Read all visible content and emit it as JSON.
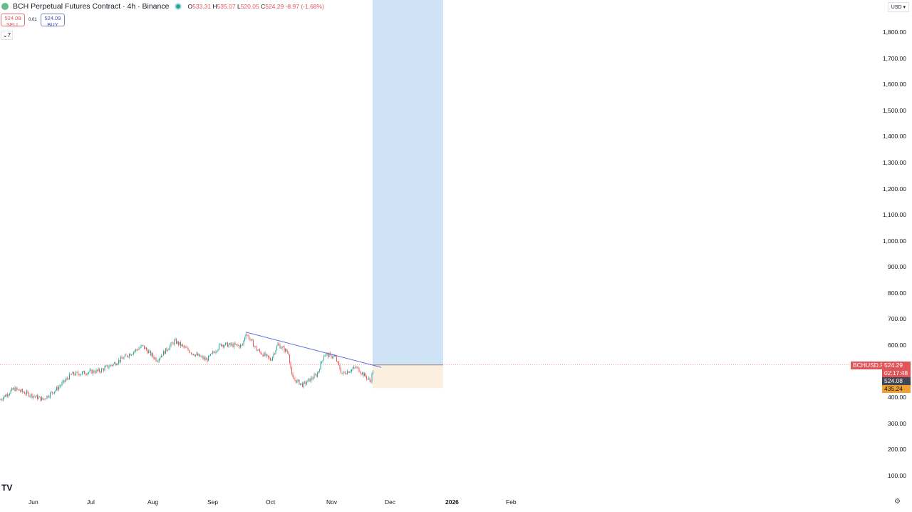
{
  "header": {
    "title": "BCH Perpetual Futures Contract · 4h · Binance",
    "open": "533.31",
    "high": "535.07",
    "low": "520.05",
    "close": "524.29",
    "change": "-8.97 (-1.68%)"
  },
  "trade": {
    "sell_price": "524.08",
    "sell_label": "SELL",
    "spread": "0.01",
    "buy_price": "524.09",
    "buy_label": "BUY"
  },
  "indicators_toggle": "7",
  "currency": "USD",
  "symbol_tag": "BCHUSD.P",
  "last_price": "524.29",
  "countdown": "02:17:48",
  "bid_price": "524.08",
  "stop_price": "435.24",
  "colors": {
    "up": "#26a69a",
    "down": "#ef5350",
    "target": "#cfe3f7",
    "stop": "#fbf0df",
    "trend": "#5b6ee1"
  },
  "chart_data": {
    "type": "candlestick",
    "title": "BCH Perpetual Futures Contract · 4h · Binance",
    "ylim": [
      100,
      1800
    ],
    "y_ticks": [
      "1,800.00",
      "1,700.00",
      "1,600.00",
      "1,500.00",
      "1,400.00",
      "1,300.00",
      "1,200.00",
      "1,100.00",
      "1,000.00",
      "900.00",
      "800.00",
      "700.00",
      "600.00",
      "400.00",
      "300.00",
      "200.00",
      "100.00"
    ],
    "x_ticks": [
      "Jun",
      "Jul",
      "Aug",
      "Sep",
      "Oct",
      "Nov",
      "Dec",
      "2026",
      "Feb"
    ],
    "price_path_waypoints": [
      [
        0,
        392
      ],
      [
        20,
        433
      ],
      [
        60,
        392
      ],
      [
        80,
        433
      ],
      [
        100,
        488
      ],
      [
        140,
        502
      ],
      [
        160,
        529
      ],
      [
        200,
        597
      ],
      [
        220,
        543
      ],
      [
        245,
        616
      ],
      [
        270,
        570
      ],
      [
        290,
        543
      ],
      [
        310,
        603
      ],
      [
        340,
        597
      ],
      [
        345,
        647
      ],
      [
        360,
        584
      ],
      [
        380,
        543
      ],
      [
        390,
        603
      ],
      [
        405,
        570
      ],
      [
        410,
        474
      ],
      [
        425,
        447
      ],
      [
        445,
        488
      ],
      [
        455,
        565
      ],
      [
        470,
        556
      ],
      [
        480,
        490
      ],
      [
        500,
        515
      ],
      [
        520,
        461
      ],
      [
        525,
        524
      ]
    ],
    "trendline": {
      "from_price": 650,
      "to_price": 515
    },
    "position": {
      "entry": 524.29,
      "target": 1815,
      "stop": 435.24
    }
  }
}
